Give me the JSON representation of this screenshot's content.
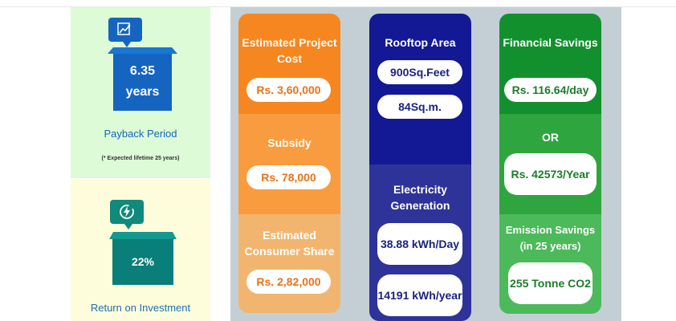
{
  "payback": {
    "icon": "chart-growth-icon",
    "value_num": "6.35",
    "value_unit": "years",
    "label": "Payback Period",
    "note": "(* Expected lifetime 25 years)"
  },
  "roi": {
    "icon": "energy-cycle-icon",
    "value": "22%",
    "label": "Return on Investment"
  },
  "cost": {
    "project_title": "Estimated Project Cost",
    "project_value": "Rs. 3,60,000",
    "subsidy_title": "Subsidy",
    "subsidy_value": "Rs. 78,000",
    "consumer_title": "Estimated Consumer Share",
    "consumer_value": "Rs. 2,82,000"
  },
  "roof": {
    "area_title": "Rooftop Area",
    "area_feet": "900Sq.Feet",
    "area_m": "84Sq.m.",
    "gen_title": "Electricity Generation",
    "gen_day": "38.88 kWh/Day",
    "gen_year": "14191 kWh/year"
  },
  "finance": {
    "savings_title": "Financial Savings",
    "savings_day": "Rs. 116.64/day",
    "or_label": "OR",
    "savings_year": "Rs. 42573/Year",
    "emission_title": "Emission Savings (in 25 years)",
    "emission_value": "255 Tonne CO2"
  },
  "colors": {
    "payback_bg": "#dcfbd6",
    "roi_bg": "#fdfddc",
    "panel_bg": "#c4cfd5",
    "cost_1": "#f6861f",
    "cost_2": "#f89c3f",
    "cost_3": "#f2b56f",
    "roof_1": "#131895",
    "roof_2": "#2e3399",
    "fin_1": "#12902e",
    "fin_2": "#2fa53f",
    "fin_3": "#4cba5a"
  }
}
